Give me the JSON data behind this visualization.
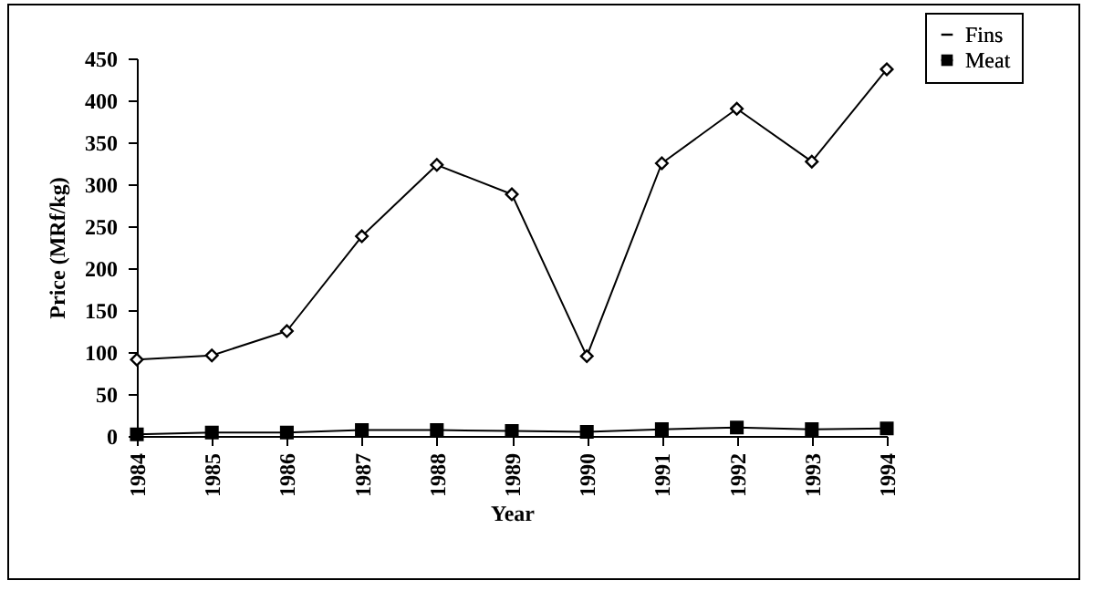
{
  "chart_data": {
    "type": "line",
    "xlabel": "Year",
    "ylabel": "Price (MRf/kg)",
    "categories": [
      "1984",
      "1985",
      "1986",
      "1987",
      "1988",
      "1989",
      "1990",
      "1991",
      "1992",
      "1993",
      "1994"
    ],
    "series": [
      {
        "name": "Fins",
        "color": "#000000",
        "marker": "diamond",
        "values": [
          91,
          96,
          125,
          238,
          323,
          288,
          95,
          325,
          390,
          327,
          437
        ]
      },
      {
        "name": "Meat",
        "color": "#000000",
        "marker": "square",
        "values": [
          2,
          4,
          4,
          7,
          7,
          6,
          5,
          8,
          10,
          8,
          9
        ]
      }
    ],
    "ylim": [
      0,
      450
    ],
    "yticks": [
      0,
      50,
      100,
      150,
      200,
      250,
      300,
      350,
      400,
      450
    ],
    "grid": false,
    "legend": "top right"
  }
}
